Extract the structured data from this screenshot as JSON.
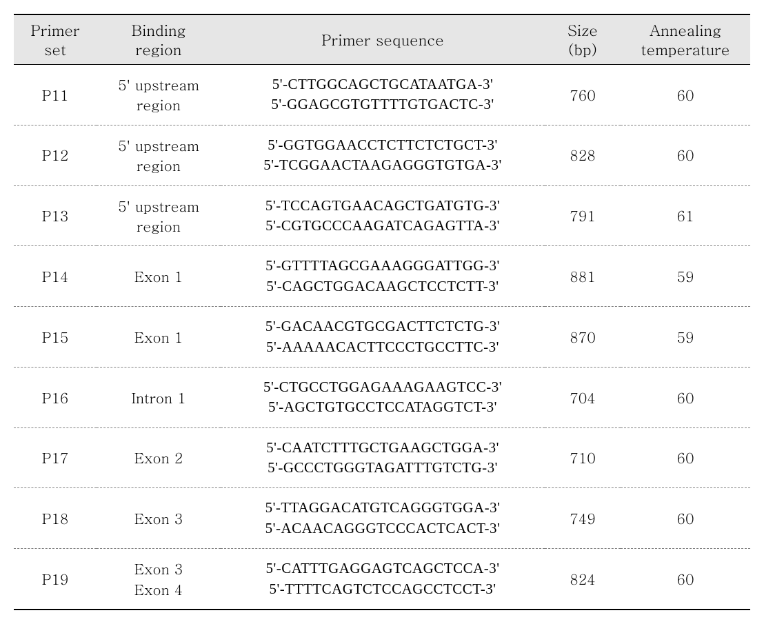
{
  "columns": [
    {
      "line1": "Primer",
      "line2": "set"
    },
    {
      "line1": "Binding",
      "line2": "region"
    },
    {
      "line1": "Primer  sequence",
      "line2": ""
    },
    {
      "line1": "Size",
      "line2": "(bp)"
    },
    {
      "line1": "Annealing",
      "line2": "temperature"
    }
  ],
  "colWidths": [
    "120px",
    "180px",
    "470px",
    "110px",
    "188px"
  ],
  "rows": [
    {
      "set": "P11",
      "region_line1": "5' upstream",
      "region_line2": "region",
      "seq1": "5'-CTTGGCAGCTGCATAATGA-3'",
      "seq2": "5'-GGAGCGTGTTTTGTGACTC-3'",
      "size": "760",
      "temp": "60"
    },
    {
      "set": "P12",
      "region_line1": "5' upstream",
      "region_line2": "region",
      "seq1": "5'-GGTGGAACCTCTTCTCTGCT-3'",
      "seq2": "5'-TCGGAACTAAGAGGGTGTGA-3'",
      "size": "828",
      "temp": "60"
    },
    {
      "set": "P13",
      "region_line1": "5' upstream",
      "region_line2": "region",
      "seq1": "5'-TCCAGTGAACAGCTGATGTG-3'",
      "seq2": "5'-CGTGCCCAAGATCAGAGTTA-3'",
      "size": "791",
      "temp": "61"
    },
    {
      "set": "P14",
      "region_line1": "Exon 1",
      "region_line2": "",
      "seq1": "5'-GTTTTAGCGAAAGGGATTGG-3'",
      "seq2": "5'-CAGCTGGACAAGCTCCTCTT-3'",
      "size": "881",
      "temp": "59"
    },
    {
      "set": "P15",
      "region_line1": "Exon 1",
      "region_line2": "",
      "seq1": "5'-GACAACGTGCGACTTCTCTG-3'",
      "seq2": "5'-AAAAACACTTCCCTGCCTTC-3'",
      "size": "870",
      "temp": "59"
    },
    {
      "set": "P16",
      "region_line1": "Intron 1",
      "region_line2": "",
      "seq1": "5'-CTGCCTGGAGAAAGAAGTCC-3'",
      "seq2": "5'-AGCTGTGCCTCCATAGGTCT-3'",
      "size": "704",
      "temp": "60"
    },
    {
      "set": "P17",
      "region_line1": "Exon 2",
      "region_line2": "",
      "seq1": "5'-CAATCTTTGCTGAAGCTGGA-3'",
      "seq2": "5'-GCCCTGGGTAGATTTGTCTG-3'",
      "size": "710",
      "temp": "60"
    },
    {
      "set": "P18",
      "region_line1": "Exon 3",
      "region_line2": "",
      "seq1": "5'-TTAGGACATGTCAGGGTGGA-3'",
      "seq2": "5'-ACAACAGGGTCCCACTCACT-3'",
      "size": "749",
      "temp": "60"
    },
    {
      "set": "P19",
      "region_line1": "Exon 3",
      "region_line2": "Exon 4",
      "seq1": "5'-CATTTGAGGAGTCAGCTCCA-3'",
      "seq2": "5'-TTTTCAGTCTCCAGCCTCCT-3'",
      "size": "824",
      "temp": "60"
    }
  ]
}
